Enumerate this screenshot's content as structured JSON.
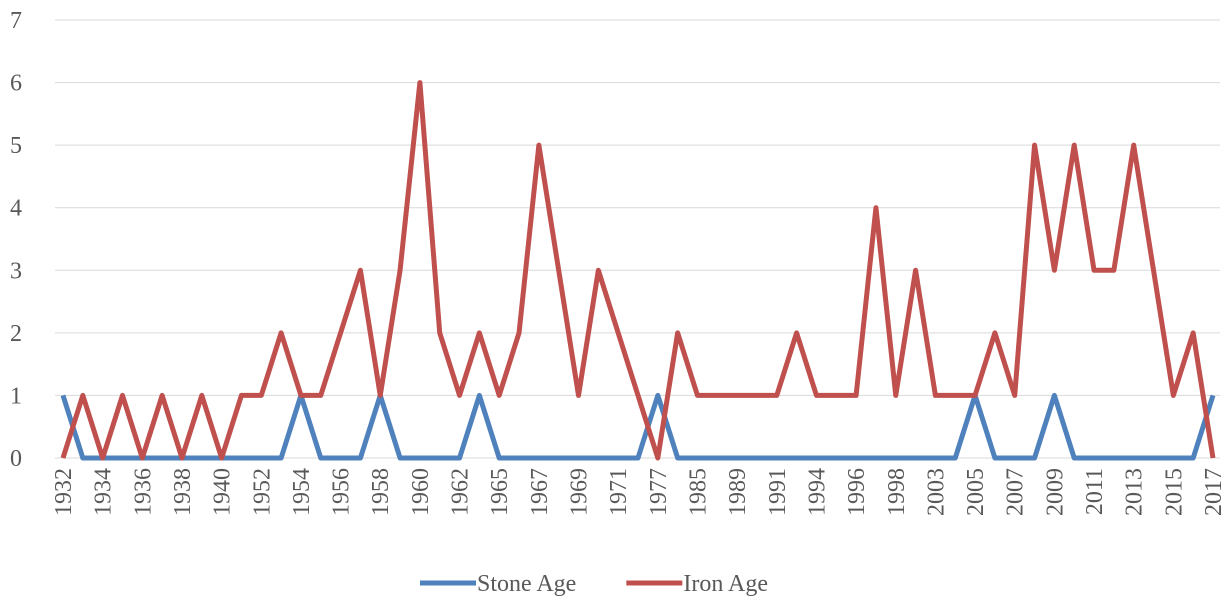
{
  "chart_data": {
    "type": "line",
    "categories": [
      "1932",
      null,
      "1934",
      null,
      "1936",
      null,
      "1938",
      null,
      "1940",
      null,
      "1952",
      null,
      "1954",
      null,
      "1956",
      null,
      "1958",
      null,
      "1960",
      null,
      "1962",
      null,
      "1965",
      null,
      "1967",
      null,
      "1969",
      null,
      "1971",
      null,
      "1977",
      null,
      "1985",
      null,
      "1989",
      null,
      "1991",
      null,
      "1994",
      null,
      "1996",
      null,
      "1998",
      null,
      "2003",
      null,
      "2005",
      null,
      "2007",
      null,
      "2009",
      null,
      "2011",
      null,
      "2013",
      null,
      "2015",
      null,
      "2017"
    ],
    "series": [
      {
        "name": "Stone Age",
        "color": "#4f81bd",
        "values": [
          1,
          0,
          0,
          0,
          0,
          0,
          0,
          0,
          0,
          0,
          0,
          0,
          1,
          0,
          0,
          0,
          1,
          0,
          0,
          0,
          0,
          1,
          0,
          0,
          0,
          0,
          0,
          0,
          0,
          0,
          1,
          0,
          0,
          0,
          0,
          0,
          0,
          0,
          0,
          0,
          0,
          0,
          0,
          0,
          0,
          0,
          1,
          0,
          0,
          0,
          1,
          0,
          0,
          0,
          0,
          0,
          0,
          0,
          1
        ]
      },
      {
        "name": "Iron Age",
        "color": "#c0504d",
        "values": [
          0,
          1,
          0,
          1,
          0,
          1,
          0,
          1,
          0,
          1,
          1,
          2,
          1,
          1,
          2,
          3,
          1,
          3,
          6,
          2,
          1,
          2,
          1,
          2,
          5,
          3,
          1,
          3,
          2,
          1,
          0,
          2,
          1,
          1,
          1,
          1,
          1,
          2,
          1,
          1,
          1,
          4,
          1,
          3,
          1,
          1,
          1,
          2,
          1,
          5,
          3,
          5,
          3,
          3,
          5,
          3,
          1,
          2,
          0
        ]
      }
    ],
    "ylim": [
      0,
      7
    ],
    "yticks": [
      0,
      1,
      2,
      3,
      4,
      5,
      6,
      7
    ],
    "grid": true,
    "legend": "bottom"
  }
}
